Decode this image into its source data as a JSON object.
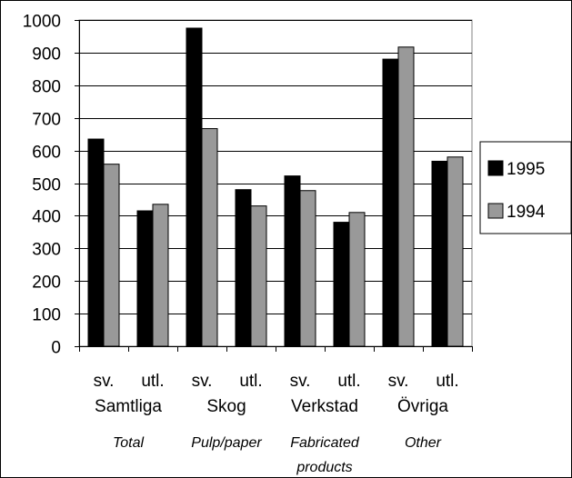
{
  "chart_data": {
    "type": "bar",
    "ylim": [
      0,
      1000
    ],
    "yticks": [
      0,
      100,
      200,
      300,
      400,
      500,
      600,
      700,
      800,
      900,
      1000
    ],
    "grid": true,
    "legend_position": "right",
    "categories": [
      "sv.",
      "utl.",
      "sv.",
      "utl.",
      "sv.",
      "utl.",
      "sv.",
      "utl."
    ],
    "groups": [
      {
        "label": "Samtliga",
        "english": [
          "Total"
        ]
      },
      {
        "label": "Skog",
        "english": [
          "Pulp/paper"
        ]
      },
      {
        "label": "Verkstad",
        "english": [
          "Fabricated",
          "products"
        ]
      },
      {
        "label": "Övriga",
        "english": [
          "Other"
        ]
      }
    ],
    "series": [
      {
        "name": "1995",
        "color": "#000000",
        "values": [
          635,
          415,
          975,
          480,
          522,
          380,
          880,
          567
        ]
      },
      {
        "name": "1994",
        "color": "#999999",
        "values": [
          558,
          435,
          667,
          430,
          477,
          410,
          917,
          580
        ]
      }
    ]
  }
}
